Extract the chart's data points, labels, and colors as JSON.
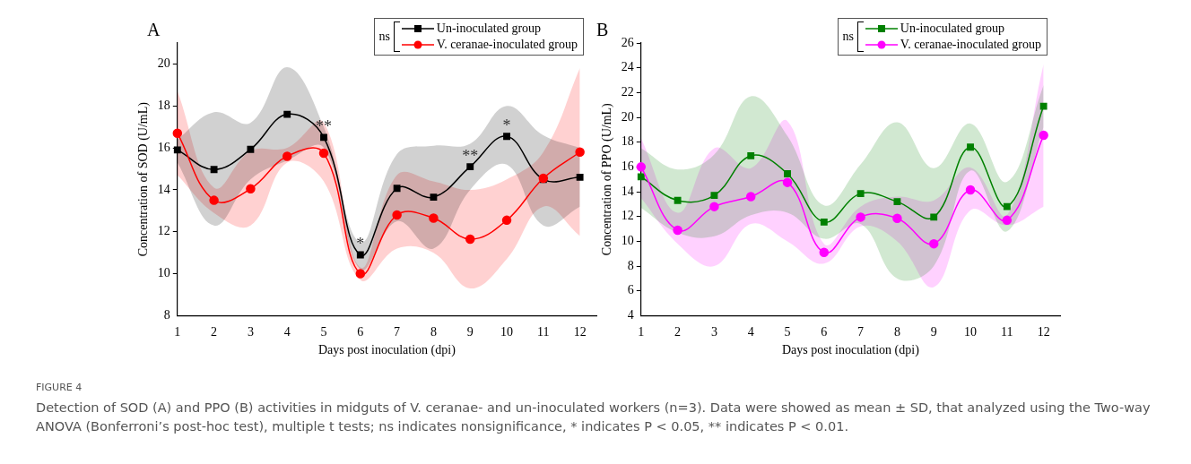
{
  "chart_data": [
    {
      "type": "line",
      "title": "A",
      "xlabel": "Days post inoculation (dpi)",
      "ylabel": "Concentration of SOD (U/mL)",
      "legend_title": "ns",
      "legend": "top right",
      "grid": false,
      "x": [
        1,
        2,
        3,
        4,
        5,
        6,
        7,
        8,
        9,
        10,
        11,
        12
      ],
      "xlim": [
        1,
        12.45
      ],
      "xticks": [
        1,
        2,
        3,
        4,
        5,
        6,
        7,
        8,
        9,
        10,
        11,
        12
      ],
      "ylim": [
        8,
        21
      ],
      "yticks": [
        8,
        10,
        12,
        14,
        16,
        18,
        20
      ],
      "series": [
        {
          "name": "Un-inoculated group",
          "color": "#000000",
          "marker": "square",
          "values": [
            15.9,
            14.97,
            15.93,
            17.6,
            16.5,
            10.9,
            14.07,
            13.65,
            15.1,
            16.55,
            14.5,
            14.6
          ],
          "upper": [
            16.4,
            17.7,
            17.2,
            19.85,
            17.0,
            11.5,
            15.7,
            16.1,
            16.2,
            18.0,
            16.6,
            16.0
          ],
          "lower": [
            15.3,
            12.3,
            14.5,
            15.4,
            16.0,
            10.2,
            12.5,
            11.2,
            14.0,
            15.2,
            12.3,
            13.2
          ]
        },
        {
          "name": "V. ceranae-inoculated group",
          "color": "#ff0000",
          "marker": "circle",
          "values": [
            16.7,
            13.5,
            14.05,
            15.6,
            15.75,
            10.0,
            12.8,
            12.65,
            11.65,
            12.55,
            14.55,
            15.8
          ],
          "upper": [
            18.7,
            14.1,
            15.85,
            16.0,
            17.2,
            10.3,
            14.7,
            14.4,
            14.0,
            14.5,
            15.8,
            19.8
          ],
          "lower": [
            14.7,
            12.9,
            12.3,
            15.3,
            14.4,
            9.7,
            11.2,
            11.0,
            9.3,
            10.7,
            13.2,
            11.8
          ]
        }
      ],
      "annotations": [
        {
          "text": "**",
          "x": 5,
          "y": 16.5
        },
        {
          "text": "*",
          "x": 6,
          "y": 10.9
        },
        {
          "text": "**",
          "x": 9,
          "y": 15.1
        },
        {
          "text": "*",
          "x": 10,
          "y": 16.55
        },
        "FIGURE 4",
        "Detection of SOD (A) and PPO (B) activities in midguts of V. ceranae- and un-inoculated workers  (n=3). Data were showed as mean ± SD, that analyzed using the Two-way ANOVA (Bonferroni’s post-hoc test), multiple t tests; ns indicates nonsignificance, * indicates P < 0.05, ** indicates P < 0.01."
      ]
    },
    {
      "type": "line",
      "title": "B",
      "xlabel": "Days post inoculation (dpi)",
      "ylabel": "Concentration of PPO (U/mL)",
      "legend_title": "ns",
      "legend": "top right",
      "grid": false,
      "x": [
        1,
        2,
        3,
        4,
        5,
        6,
        7,
        8,
        9,
        10,
        11,
        12
      ],
      "xlim": [
        1,
        12.45
      ],
      "xticks": [
        1,
        2,
        3,
        4,
        5,
        6,
        7,
        8,
        9,
        10,
        11,
        12
      ],
      "ylim": [
        4,
        26
      ],
      "yticks": [
        4,
        6,
        8,
        10,
        12,
        14,
        16,
        18,
        20,
        22,
        24,
        26
      ],
      "series": [
        {
          "name": "Un-inoculated group",
          "color": "#008000",
          "marker": "square",
          "values": [
            15.2,
            13.3,
            13.7,
            16.9,
            15.45,
            11.55,
            13.85,
            13.2,
            11.95,
            17.6,
            12.8,
            20.9
          ],
          "upper": [
            17.5,
            15.8,
            17.0,
            21.7,
            18.5,
            12.9,
            16.2,
            19.6,
            15.9,
            19.5,
            14.8,
            22.6
          ],
          "lower": [
            12.7,
            10.7,
            10.4,
            12.1,
            12.3,
            10.2,
            11.4,
            7.0,
            8.0,
            15.7,
            10.8,
            19.2
          ]
        },
        {
          "name": "V. ceranae-inoculated group",
          "color": "#ff00ff",
          "marker": "circle",
          "values": [
            16.0,
            10.9,
            12.8,
            13.6,
            14.75,
            9.1,
            11.95,
            11.85,
            9.8,
            14.15,
            11.7,
            18.55
          ],
          "upper": [
            18.3,
            12.3,
            17.5,
            15.9,
            19.7,
            9.8,
            12.8,
            13.6,
            13.3,
            15.95,
            12.1,
            24.3
          ],
          "lower": [
            13.5,
            9.8,
            8.0,
            11.4,
            10.0,
            8.2,
            11.2,
            10.0,
            6.3,
            12.5,
            11.3,
            12.8
          ]
        }
      ]
    }
  ]
}
